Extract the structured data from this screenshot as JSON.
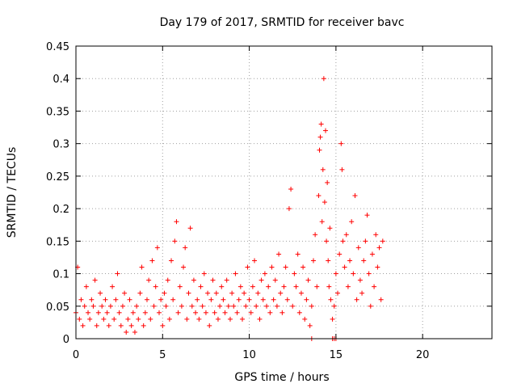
{
  "chart_data": {
    "type": "scatter",
    "title": "Day 179 of 2017, SRMTID for receiver bavc",
    "xlabel": "GPS time / hours",
    "ylabel": "SRMTID / TECUs",
    "xlim": [
      0,
      24
    ],
    "ylim": [
      0,
      0.45
    ],
    "xticks": [
      "0",
      "5",
      "10",
      "15",
      "20"
    ],
    "yticks": [
      "0",
      "0.05",
      "0.1",
      "0.15",
      "0.2",
      "0.25",
      "0.3",
      "0.35",
      "0.4",
      "0.45"
    ],
    "grid": true,
    "marker": "+",
    "marker_color": "#ff0000",
    "series": [
      {
        "name": "SRMTID",
        "points": [
          [
            0.0,
            0.04
          ],
          [
            0.1,
            0.11
          ],
          [
            0.2,
            0.03
          ],
          [
            0.3,
            0.06
          ],
          [
            0.4,
            0.02
          ],
          [
            0.5,
            0.05
          ],
          [
            0.6,
            0.08
          ],
          [
            0.7,
            0.04
          ],
          [
            0.8,
            0.03
          ],
          [
            0.9,
            0.06
          ],
          [
            1.0,
            0.05
          ],
          [
            1.1,
            0.09
          ],
          [
            1.2,
            0.02
          ],
          [
            1.3,
            0.04
          ],
          [
            1.4,
            0.07
          ],
          [
            1.5,
            0.05
          ],
          [
            1.6,
            0.03
          ],
          [
            1.7,
            0.06
          ],
          [
            1.8,
            0.04
          ],
          [
            1.9,
            0.02
          ],
          [
            2.0,
            0.05
          ],
          [
            2.1,
            0.08
          ],
          [
            2.2,
            0.03
          ],
          [
            2.3,
            0.06
          ],
          [
            2.4,
            0.1
          ],
          [
            2.5,
            0.04
          ],
          [
            2.6,
            0.02
          ],
          [
            2.7,
            0.05
          ],
          [
            2.8,
            0.07
          ],
          [
            2.9,
            0.01
          ],
          [
            3.0,
            0.03
          ],
          [
            3.1,
            0.06
          ],
          [
            3.2,
            0.02
          ],
          [
            3.3,
            0.04
          ],
          [
            3.4,
            0.01
          ],
          [
            3.5,
            0.05
          ],
          [
            3.6,
            0.03
          ],
          [
            3.7,
            0.07
          ],
          [
            3.8,
            0.11
          ],
          [
            3.9,
            0.02
          ],
          [
            4.0,
            0.04
          ],
          [
            4.1,
            0.06
          ],
          [
            4.2,
            0.09
          ],
          [
            4.3,
            0.03
          ],
          [
            4.4,
            0.12
          ],
          [
            4.5,
            0.05
          ],
          [
            4.6,
            0.08
          ],
          [
            4.7,
            0.14
          ],
          [
            4.8,
            0.04
          ],
          [
            4.9,
            0.06
          ],
          [
            5.0,
            0.02
          ],
          [
            5.1,
            0.07
          ],
          [
            5.2,
            0.05
          ],
          [
            5.3,
            0.09
          ],
          [
            5.4,
            0.03
          ],
          [
            5.5,
            0.12
          ],
          [
            5.6,
            0.06
          ],
          [
            5.7,
            0.15
          ],
          [
            5.8,
            0.18
          ],
          [
            5.9,
            0.04
          ],
          [
            6.0,
            0.08
          ],
          [
            6.1,
            0.05
          ],
          [
            6.2,
            0.11
          ],
          [
            6.3,
            0.14
          ],
          [
            6.4,
            0.03
          ],
          [
            6.5,
            0.07
          ],
          [
            6.6,
            0.17
          ],
          [
            6.7,
            0.05
          ],
          [
            6.8,
            0.09
          ],
          [
            6.9,
            0.04
          ],
          [
            7.0,
            0.06
          ],
          [
            7.1,
            0.03
          ],
          [
            7.2,
            0.08
          ],
          [
            7.3,
            0.05
          ],
          [
            7.4,
            0.1
          ],
          [
            7.5,
            0.04
          ],
          [
            7.6,
            0.07
          ],
          [
            7.7,
            0.02
          ],
          [
            7.8,
            0.06
          ],
          [
            7.9,
            0.09
          ],
          [
            8.0,
            0.04
          ],
          [
            8.1,
            0.07
          ],
          [
            8.2,
            0.03
          ],
          [
            8.3,
            0.05
          ],
          [
            8.4,
            0.08
          ],
          [
            8.5,
            0.06
          ],
          [
            8.6,
            0.04
          ],
          [
            8.7,
            0.09
          ],
          [
            8.8,
            0.05
          ],
          [
            8.9,
            0.03
          ],
          [
            9.0,
            0.07
          ],
          [
            9.1,
            0.05
          ],
          [
            9.2,
            0.1
          ],
          [
            9.3,
            0.04
          ],
          [
            9.4,
            0.06
          ],
          [
            9.5,
            0.08
          ],
          [
            9.6,
            0.03
          ],
          [
            9.7,
            0.07
          ],
          [
            9.8,
            0.05
          ],
          [
            9.9,
            0.11
          ],
          [
            10.0,
            0.06
          ],
          [
            10.1,
            0.04
          ],
          [
            10.2,
            0.08
          ],
          [
            10.3,
            0.12
          ],
          [
            10.4,
            0.05
          ],
          [
            10.5,
            0.07
          ],
          [
            10.6,
            0.03
          ],
          [
            10.7,
            0.09
          ],
          [
            10.8,
            0.06
          ],
          [
            10.9,
            0.1
          ],
          [
            11.0,
            0.05
          ],
          [
            11.1,
            0.08
          ],
          [
            11.2,
            0.04
          ],
          [
            11.3,
            0.11
          ],
          [
            11.4,
            0.06
          ],
          [
            11.5,
            0.09
          ],
          [
            11.6,
            0.05
          ],
          [
            11.7,
            0.13
          ],
          [
            11.8,
            0.07
          ],
          [
            11.9,
            0.04
          ],
          [
            12.0,
            0.08
          ],
          [
            12.1,
            0.11
          ],
          [
            12.2,
            0.06
          ],
          [
            12.3,
            0.2
          ],
          [
            12.4,
            0.23
          ],
          [
            12.5,
            0.05
          ],
          [
            12.6,
            0.1
          ],
          [
            12.7,
            0.08
          ],
          [
            12.8,
            0.13
          ],
          [
            12.9,
            0.04
          ],
          [
            13.0,
            0.07
          ],
          [
            13.1,
            0.11
          ],
          [
            13.2,
            0.03
          ],
          [
            13.3,
            0.06
          ],
          [
            13.4,
            0.09
          ],
          [
            13.5,
            0.02
          ],
          [
            13.6,
            0.05
          ],
          [
            13.7,
            0.12
          ],
          [
            13.8,
            0.16
          ],
          [
            13.9,
            0.08
          ],
          [
            14.0,
            0.22
          ],
          [
            14.05,
            0.29
          ],
          [
            14.1,
            0.31
          ],
          [
            14.15,
            0.33
          ],
          [
            14.2,
            0.18
          ],
          [
            14.25,
            0.26
          ],
          [
            14.3,
            0.4
          ],
          [
            14.35,
            0.21
          ],
          [
            14.4,
            0.32
          ],
          [
            14.45,
            0.15
          ],
          [
            14.5,
            0.24
          ],
          [
            14.55,
            0.12
          ],
          [
            14.6,
            0.08
          ],
          [
            14.65,
            0.17
          ],
          [
            14.7,
            0.06
          ],
          [
            14.8,
            0.03
          ],
          [
            14.9,
            0.05
          ],
          [
            15.0,
            0.1
          ],
          [
            15.1,
            0.07
          ],
          [
            15.2,
            0.13
          ],
          [
            15.3,
            0.3
          ],
          [
            15.35,
            0.26
          ],
          [
            15.4,
            0.15
          ],
          [
            15.5,
            0.11
          ],
          [
            15.6,
            0.16
          ],
          [
            15.7,
            0.08
          ],
          [
            15.8,
            0.12
          ],
          [
            15.9,
            0.18
          ],
          [
            16.0,
            0.1
          ],
          [
            16.1,
            0.22
          ],
          [
            16.2,
            0.06
          ],
          [
            16.3,
            0.14
          ],
          [
            16.4,
            0.09
          ],
          [
            16.5,
            0.07
          ],
          [
            16.6,
            0.12
          ],
          [
            16.7,
            0.15
          ],
          [
            16.8,
            0.19
          ],
          [
            16.9,
            0.1
          ],
          [
            17.0,
            0.05
          ],
          [
            17.1,
            0.13
          ],
          [
            17.2,
            0.08
          ],
          [
            17.3,
            0.16
          ],
          [
            17.4,
            0.11
          ],
          [
            17.5,
            0.14
          ],
          [
            17.6,
            0.06
          ],
          [
            17.7,
            0.15
          ],
          [
            13.6,
            0.0
          ],
          [
            14.8,
            0.0
          ],
          [
            14.9,
            0.0
          ],
          [
            15.0,
            0.0
          ]
        ]
      }
    ]
  }
}
